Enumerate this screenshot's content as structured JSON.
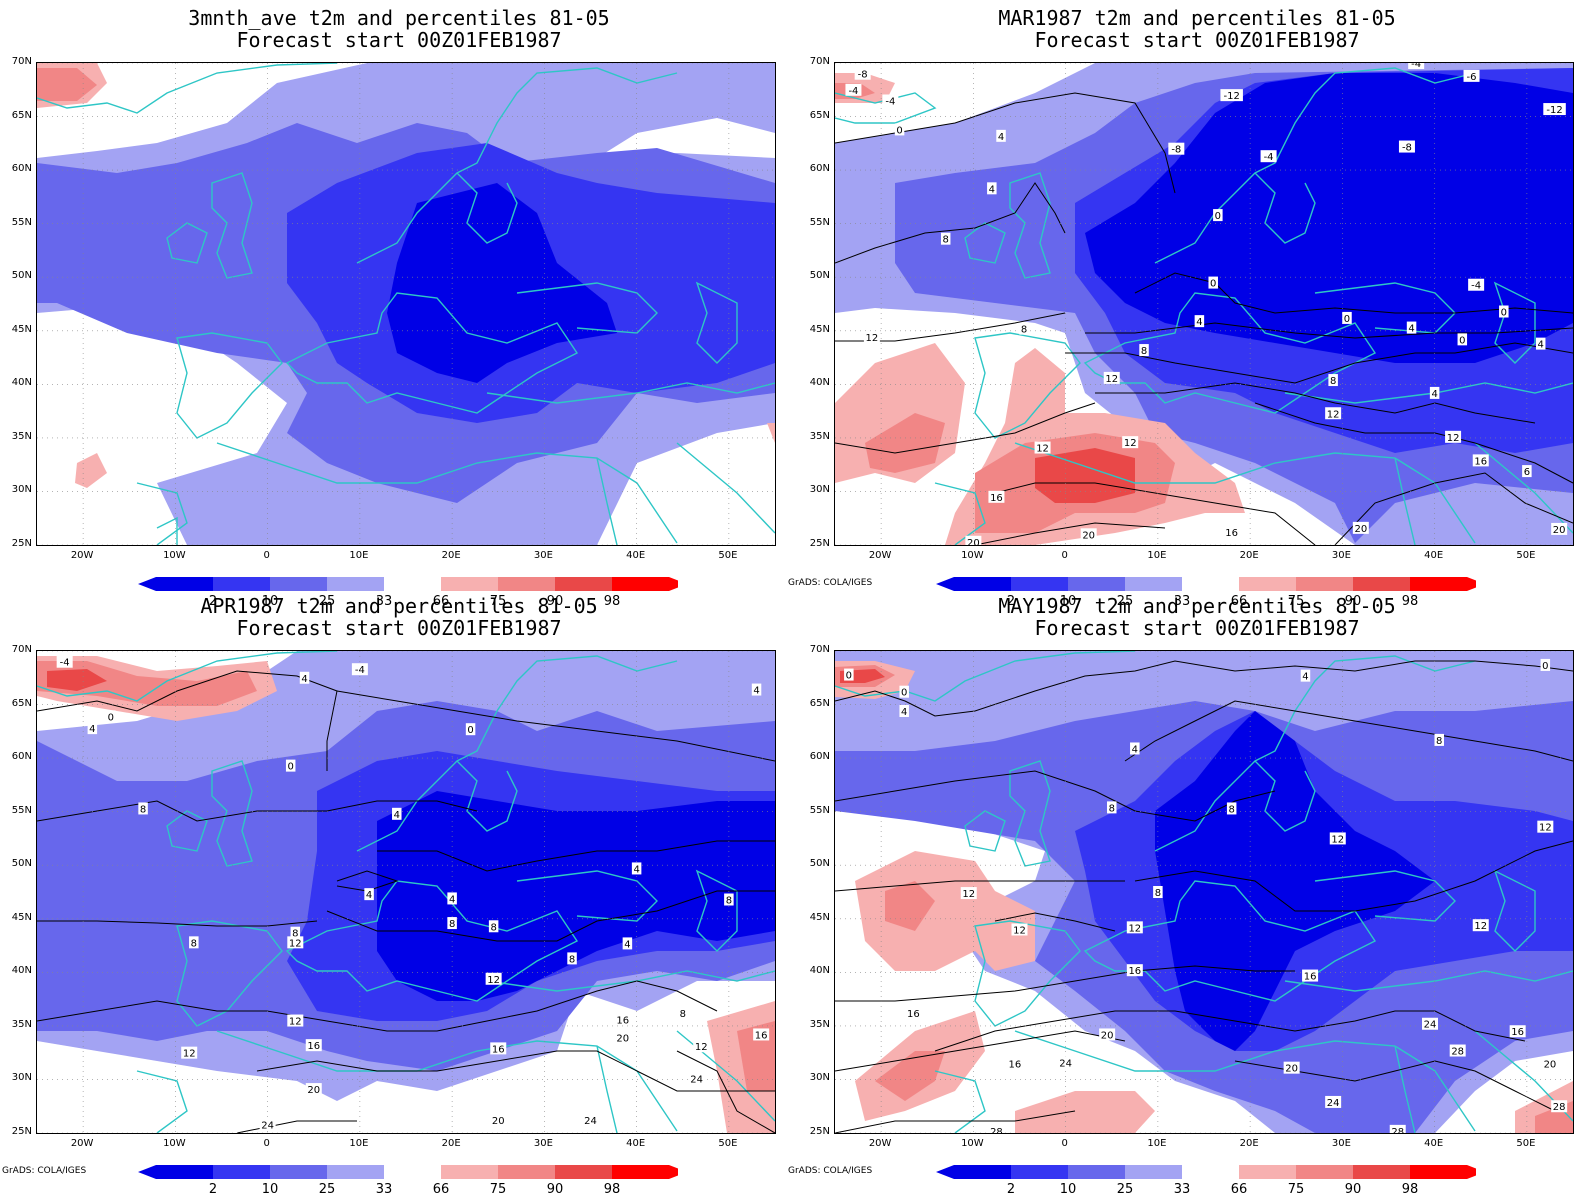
{
  "colors": {
    "b2": "#0000e6",
    "b10": "#3535f2",
    "b25": "#6767ec",
    "b33": "#a3a3f3",
    "r66": "#f7b0b0",
    "r75": "#f18686",
    "r90": "#e94848",
    "r98": "#ff0000",
    "coast": "#2ec6c6",
    "contour": "#000000"
  },
  "axes": {
    "lat_labels": [
      "70N",
      "65N",
      "60N",
      "55N",
      "50N",
      "45N",
      "40N",
      "35N",
      "30N",
      "25N"
    ],
    "lon_labels": [
      "20W",
      "10W",
      "0",
      "10E",
      "20E",
      "30E",
      "40E",
      "50E"
    ],
    "lat_range": [
      25,
      70
    ],
    "lon_range": [
      -25,
      55
    ]
  },
  "colorbar": {
    "labels": [
      "2",
      "10",
      "25",
      "33",
      "66",
      "75",
      "90",
      "98"
    ]
  },
  "credit": "GrADS: COLA/IGES",
  "panels": [
    {
      "title": "3mnth_ave t2m and percentiles 81-05",
      "subtitle": "Forecast start 00Z01FEB1987",
      "show_credit": false,
      "contour_labels": []
    },
    {
      "title": "MAR1987 t2m and percentiles 81-05",
      "subtitle": "Forecast start 00Z01FEB1987",
      "show_credit": true,
      "contour_labels": [
        {
          "text": "-8",
          "lon": -22,
          "lat": 69
        },
        {
          "text": "-4",
          "lon": -23,
          "lat": 67.5
        },
        {
          "text": "-4",
          "lon": -19,
          "lat": 66.5
        },
        {
          "text": "0",
          "lon": -18,
          "lat": 63.8
        },
        {
          "text": "4",
          "lon": -7,
          "lat": 63.2
        },
        {
          "text": "4",
          "lon": -8,
          "lat": 58.3
        },
        {
          "text": "8",
          "lon": -13,
          "lat": 53.6
        },
        {
          "text": "12",
          "lon": -21,
          "lat": 44.4
        },
        {
          "text": "8",
          "lon": -4.5,
          "lat": 45.2
        },
        {
          "text": "-12",
          "lon": 18,
          "lat": 67
        },
        {
          "text": "-8",
          "lon": 12,
          "lat": 62
        },
        {
          "text": "-4",
          "lon": 22,
          "lat": 61.3
        },
        {
          "text": "-8",
          "lon": 37,
          "lat": 62.2
        },
        {
          "text": "-6",
          "lon": 44,
          "lat": 68.8
        },
        {
          "text": "-12",
          "lon": 53,
          "lat": 65.7
        },
        {
          "text": "-4",
          "lon": 38,
          "lat": 70
        },
        {
          "text": "0",
          "lon": 16.5,
          "lat": 55.8
        },
        {
          "text": "0",
          "lon": 16,
          "lat": 49.5
        },
        {
          "text": "-4",
          "lon": 44.5,
          "lat": 49.3
        },
        {
          "text": "0",
          "lon": 47.5,
          "lat": 46.8
        },
        {
          "text": "0",
          "lon": 30.5,
          "lat": 46.2
        },
        {
          "text": "4",
          "lon": 14.5,
          "lat": 45.9
        },
        {
          "text": "4",
          "lon": 37.5,
          "lat": 45.3
        },
        {
          "text": "0",
          "lon": 43,
          "lat": 44.2
        },
        {
          "text": "4",
          "lon": 51.5,
          "lat": 43.8
        },
        {
          "text": "8",
          "lon": 8.5,
          "lat": 43.2
        },
        {
          "text": "8",
          "lon": 29,
          "lat": 40.4
        },
        {
          "text": "4",
          "lon": 40,
          "lat": 39.2
        },
        {
          "text": "12",
          "lon": 5,
          "lat": 40.6
        },
        {
          "text": "12",
          "lon": 29,
          "lat": 37.3
        },
        {
          "text": "12",
          "lon": 42,
          "lat": 35.1
        },
        {
          "text": "16",
          "lon": 45,
          "lat": 32.9
        },
        {
          "text": "6",
          "lon": 50,
          "lat": 31.9
        },
        {
          "text": "12",
          "lon": -2.5,
          "lat": 34.1
        },
        {
          "text": "12",
          "lon": 7,
          "lat": 34.6
        },
        {
          "text": "16",
          "lon": -7.5,
          "lat": 29.5
        },
        {
          "text": "16",
          "lon": 18,
          "lat": 26.2
        },
        {
          "text": "20",
          "lon": 2.5,
          "lat": 26
        },
        {
          "text": "20",
          "lon": -10,
          "lat": 25.3
        },
        {
          "text": "20",
          "lon": 32,
          "lat": 26.6
        },
        {
          "text": "20",
          "lon": 53.5,
          "lat": 26.5
        }
      ]
    },
    {
      "title": "APR1987 t2m and percentiles 81-05",
      "subtitle": "Forecast start 00Z01FEB1987",
      "show_credit": true,
      "contour_labels": [
        {
          "text": "-4",
          "lon": -22,
          "lat": 69
        },
        {
          "text": "0",
          "lon": -17,
          "lat": 63.9
        },
        {
          "text": "4",
          "lon": -19,
          "lat": 62.8
        },
        {
          "text": "-4",
          "lon": 10,
          "lat": 68.3
        },
        {
          "text": "4",
          "lon": 4,
          "lat": 67.5
        },
        {
          "text": "4",
          "lon": 53,
          "lat": 66.4
        },
        {
          "text": "0",
          "lon": 2.5,
          "lat": 59.3
        },
        {
          "text": "0",
          "lon": 22,
          "lat": 62.7
        },
        {
          "text": "8",
          "lon": -13.5,
          "lat": 55.3
        },
        {
          "text": "4",
          "lon": 14,
          "lat": 54.8
        },
        {
          "text": "4",
          "lon": 40,
          "lat": 49.7
        },
        {
          "text": "4",
          "lon": 11,
          "lat": 47.3
        },
        {
          "text": "4",
          "lon": 20,
          "lat": 46.9
        },
        {
          "text": "8",
          "lon": 50,
          "lat": 46.8
        },
        {
          "text": "8",
          "lon": 20,
          "lat": 44.6
        },
        {
          "text": "8",
          "lon": 24.5,
          "lat": 44.3
        },
        {
          "text": "8",
          "lon": 3,
          "lat": 43.7
        },
        {
          "text": "12",
          "lon": 3,
          "lat": 42.8
        },
        {
          "text": "8",
          "lon": -8,
          "lat": 42.8
        },
        {
          "text": "4",
          "lon": 39,
          "lat": 42.7
        },
        {
          "text": "8",
          "lon": 33,
          "lat": 41.3
        },
        {
          "text": "12",
          "lon": 24.5,
          "lat": 39.4
        },
        {
          "text": "8",
          "lon": 45,
          "lat": 36.2
        },
        {
          "text": "16",
          "lon": 38.5,
          "lat": 35.6
        },
        {
          "text": "20",
          "lon": 38.5,
          "lat": 33.9
        },
        {
          "text": "12",
          "lon": 47,
          "lat": 33.1
        },
        {
          "text": "16",
          "lon": 53.5,
          "lat": 34.2
        },
        {
          "text": "12",
          "lon": 3,
          "lat": 35.5
        },
        {
          "text": "16",
          "lon": 5,
          "lat": 33.2
        },
        {
          "text": "16",
          "lon": 25,
          "lat": 32.9
        },
        {
          "text": "12",
          "lon": -8.5,
          "lat": 32.5
        },
        {
          "text": "20",
          "lon": 5,
          "lat": 29.1
        },
        {
          "text": "24",
          "lon": 46.5,
          "lat": 30.1
        },
        {
          "text": "20",
          "lon": 25,
          "lat": 26.2
        },
        {
          "text": "24",
          "lon": 35,
          "lat": 26.2
        },
        {
          "text": "24",
          "lon": 0,
          "lat": 25.8
        }
      ]
    },
    {
      "title": "MAY1987 t2m and percentiles 81-05",
      "subtitle": "Forecast start 00Z01FEB1987",
      "show_credit": true,
      "contour_labels": [
        {
          "text": "0",
          "lon": -23.5,
          "lat": 67.8
        },
        {
          "text": "0",
          "lon": -17.5,
          "lat": 66.2
        },
        {
          "text": "4",
          "lon": -17.5,
          "lat": 64.4
        },
        {
          "text": "0",
          "lon": 52,
          "lat": 68.7
        },
        {
          "text": "4",
          "lon": 26,
          "lat": 67.7
        },
        {
          "text": "4",
          "lon": 7.5,
          "lat": 60.9
        },
        {
          "text": "8",
          "lon": 40.5,
          "lat": 61.7
        },
        {
          "text": "8",
          "lon": 5,
          "lat": 55.4
        },
        {
          "text": "8",
          "lon": 18,
          "lat": 55.3
        },
        {
          "text": "12",
          "lon": 29.5,
          "lat": 52.5
        },
        {
          "text": "12",
          "lon": 52,
          "lat": 53.6
        },
        {
          "text": "12",
          "lon": -10.5,
          "lat": 47.4
        },
        {
          "text": "8",
          "lon": 10,
          "lat": 47.5
        },
        {
          "text": "12",
          "lon": 45,
          "lat": 44.4
        },
        {
          "text": "12",
          "lon": -5,
          "lat": 44
        },
        {
          "text": "12",
          "lon": 7.5,
          "lat": 44.2
        },
        {
          "text": "16",
          "lon": 7.5,
          "lat": 40.2
        },
        {
          "text": "16",
          "lon": 26.5,
          "lat": 39.7
        },
        {
          "text": "16",
          "lon": -16.5,
          "lat": 36.2
        },
        {
          "text": "20",
          "lon": 4.5,
          "lat": 34.2
        },
        {
          "text": "24",
          "lon": 39.5,
          "lat": 35.2
        },
        {
          "text": "16",
          "lon": 49,
          "lat": 34.5
        },
        {
          "text": "28",
          "lon": 42.5,
          "lat": 32.7
        },
        {
          "text": "20",
          "lon": 52.5,
          "lat": 31.5
        },
        {
          "text": "16",
          "lon": -5.5,
          "lat": 31.5
        },
        {
          "text": "24",
          "lon": 0,
          "lat": 31.6
        },
        {
          "text": "20",
          "lon": 24.5,
          "lat": 31.1
        },
        {
          "text": "24",
          "lon": 29,
          "lat": 27.9
        },
        {
          "text": "28",
          "lon": 53.5,
          "lat": 27.5
        },
        {
          "text": "28",
          "lon": -7.5,
          "lat": 25.2
        },
        {
          "text": "28",
          "lon": 36,
          "lat": 25.2
        }
      ]
    }
  ]
}
